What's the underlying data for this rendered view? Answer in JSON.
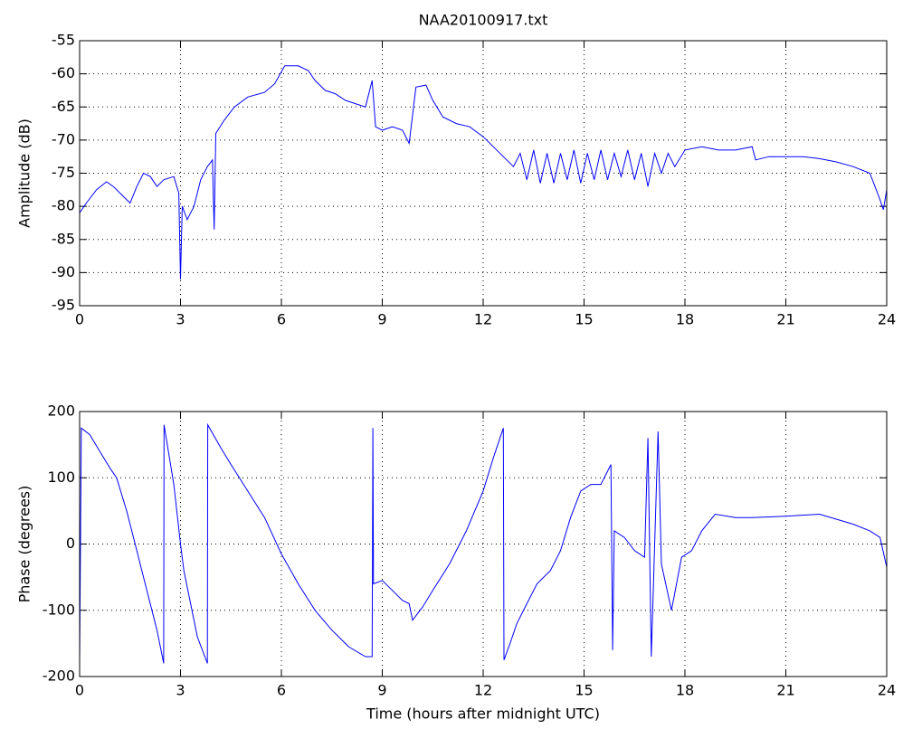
{
  "chart_data": [
    {
      "type": "line",
      "title": "NAA20100917.txt",
      "ylabel": "Amplitude (dB)",
      "color": "#0000ff",
      "grid": true,
      "xlim": [
        0,
        24
      ],
      "xticks": [
        0,
        3,
        6,
        9,
        12,
        15,
        18,
        21,
        24
      ],
      "ylim": [
        -95,
        -55
      ],
      "yticks": [
        -95,
        -90,
        -85,
        -80,
        -75,
        -70,
        -65,
        -60,
        -55
      ],
      "x": [
        0,
        0.2,
        0.5,
        0.8,
        1.0,
        1.3,
        1.5,
        1.7,
        1.9,
        2.1,
        2.3,
        2.5,
        2.8,
        2.95,
        3.0,
        3.05,
        3.2,
        3.4,
        3.6,
        3.8,
        3.95,
        4.0,
        4.05,
        4.3,
        4.6,
        5.0,
        5.5,
        5.8,
        6.1,
        6.5,
        6.8,
        7.0,
        7.3,
        7.6,
        7.9,
        8.2,
        8.5,
        8.7,
        8.8,
        9.0,
        9.3,
        9.6,
        9.8,
        10.0,
        10.3,
        10.5,
        10.8,
        11.2,
        11.6,
        12.0,
        12.3,
        12.6,
        12.9,
        13.1,
        13.3,
        13.5,
        13.7,
        13.9,
        14.1,
        14.3,
        14.5,
        14.7,
        14.9,
        15.1,
        15.3,
        15.5,
        15.7,
        15.9,
        16.1,
        16.3,
        16.5,
        16.7,
        16.9,
        17.1,
        17.3,
        17.5,
        17.7,
        18.0,
        18.5,
        19.0,
        19.5,
        20.0,
        20.1,
        20.5,
        21.0,
        21.5,
        22.0,
        22.5,
        23.0,
        23.5,
        23.8,
        23.9,
        24.0
      ],
      "values": [
        -81,
        -79.5,
        -77.5,
        -76.3,
        -77,
        -78.5,
        -79.5,
        -77,
        -75,
        -75.5,
        -77,
        -76,
        -75.5,
        -78,
        -91,
        -80,
        -82,
        -80,
        -76,
        -74,
        -73,
        -83.5,
        -69,
        -67,
        -65,
        -63.5,
        -62.8,
        -61.5,
        -58.8,
        -58.8,
        -59.5,
        -61,
        -62.5,
        -63,
        -64,
        -64.5,
        -65,
        -61,
        -68,
        -68.5,
        -68,
        -68.5,
        -70.5,
        -62,
        -61.7,
        -64,
        -66.5,
        -67.5,
        -68,
        -69.5,
        -71,
        -72.5,
        -74,
        -72,
        -76,
        -71.5,
        -76.5,
        -72,
        -76.5,
        -72,
        -76,
        -71.5,
        -76.5,
        -72,
        -76,
        -71.5,
        -76,
        -72,
        -75.5,
        -71.5,
        -76,
        -72,
        -77,
        -72,
        -75,
        -72,
        -74,
        -71.5,
        -71,
        -71.5,
        -71.5,
        -71,
        -73,
        -72.5,
        -72.5,
        -72.5,
        -72.8,
        -73.3,
        -74,
        -75,
        -79,
        -80.5,
        -77.5
      ]
    },
    {
      "type": "line",
      "xlabel": "Time (hours after midnight UTC)",
      "ylabel": "Phase (degrees)",
      "color": "#0000ff",
      "grid": true,
      "xlim": [
        0,
        24
      ],
      "xticks": [
        0,
        3,
        6,
        9,
        12,
        15,
        18,
        21,
        24
      ],
      "ylim": [
        -200,
        200
      ],
      "yticks": [
        -200,
        -100,
        0,
        100,
        200
      ],
      "x": [
        0,
        0.05,
        0.3,
        0.6,
        0.9,
        1.1,
        1.4,
        1.7,
        2.0,
        2.3,
        2.5,
        2.51,
        2.8,
        3.0,
        3.1,
        3.5,
        3.8,
        3.81,
        4.2,
        4.5,
        5.0,
        5.5,
        6.0,
        6.5,
        7.0,
        7.5,
        8.0,
        8.5,
        8.7,
        8.72,
        8.74,
        9.0,
        9.3,
        9.6,
        9.8,
        9.9,
        10.2,
        10.5,
        11.0,
        11.5,
        12.0,
        12.3,
        12.6,
        12.62,
        12.8,
        13.0,
        13.3,
        13.6,
        14.0,
        14.3,
        14.6,
        14.9,
        15.2,
        15.5,
        15.8,
        15.85,
        15.9,
        16.2,
        16.5,
        16.8,
        16.9,
        17.0,
        17.2,
        17.3,
        17.6,
        17.9,
        18.2,
        18.5,
        18.9,
        19.5,
        20.0,
        21.0,
        22.0,
        23.0,
        23.5,
        23.8,
        24.0
      ],
      "values": [
        -175,
        175,
        165,
        140,
        115,
        100,
        50,
        -10,
        -70,
        -130,
        -180,
        180,
        90,
        0,
        -40,
        -140,
        -180,
        180,
        145,
        120,
        80,
        40,
        -15,
        -60,
        -100,
        -130,
        -155,
        -170,
        -170,
        175,
        -60,
        -55,
        -70,
        -85,
        -90,
        -115,
        -95,
        -70,
        -30,
        20,
        80,
        130,
        175,
        -175,
        -150,
        -120,
        -90,
        -60,
        -40,
        -10,
        40,
        80,
        90,
        90,
        120,
        -160,
        20,
        10,
        -10,
        -20,
        160,
        -170,
        170,
        -30,
        -100,
        -20,
        -10,
        20,
        45,
        40,
        40,
        42,
        45,
        30,
        20,
        10,
        -35
      ]
    }
  ]
}
